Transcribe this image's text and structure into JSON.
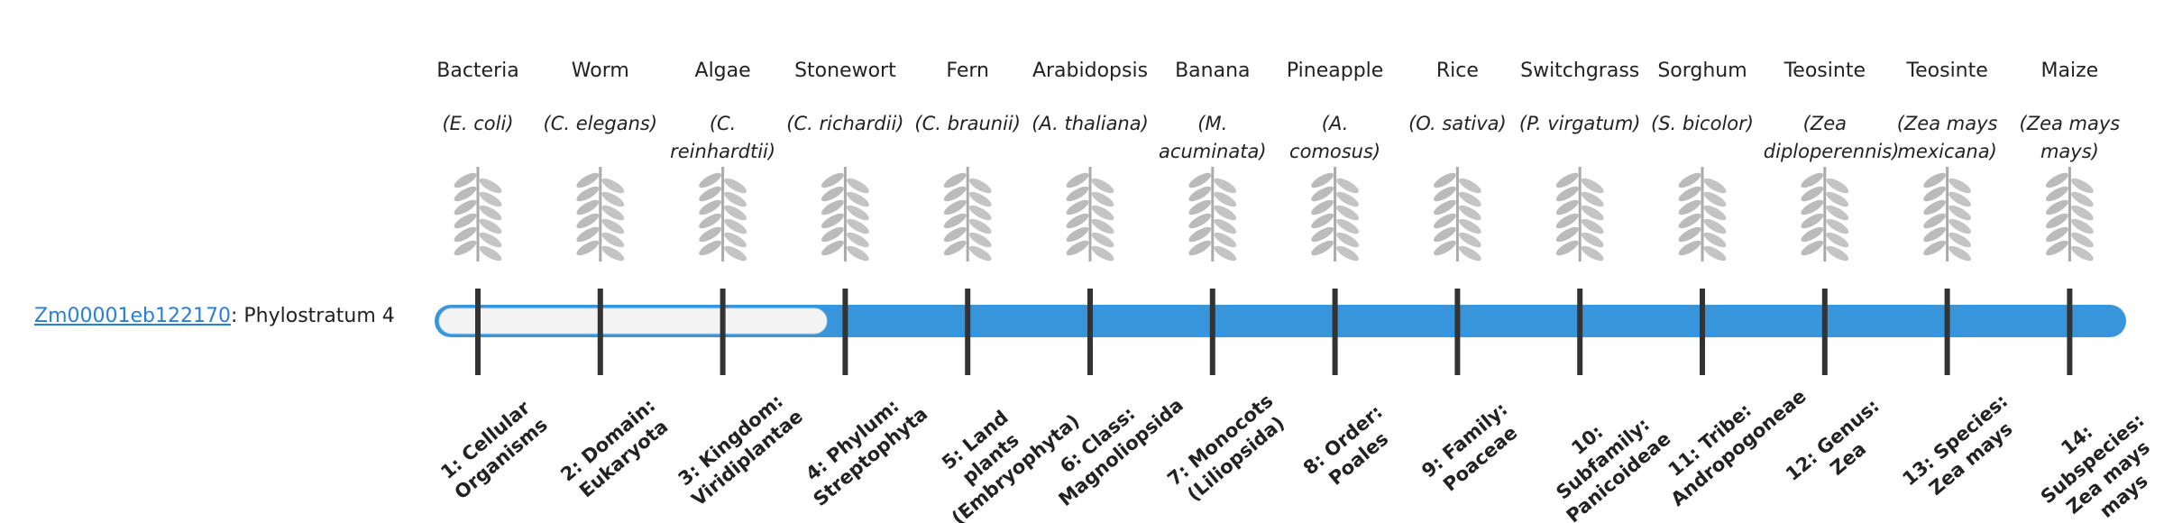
{
  "gene": {
    "id": "Zm00001eb122170",
    "suffix": ": Phylostratum 4"
  },
  "strata": [
    {
      "name": "Bacteria",
      "species": "(E. coli)",
      "label": "1: Cellular Organisms"
    },
    {
      "name": "Worm",
      "species": "(C. elegans)",
      "label": "2: Domain: Eukaryota"
    },
    {
      "name": "Algae",
      "species": "(C. reinhardtii)",
      "label": "3: Kingdom: Viridiplantae"
    },
    {
      "name": "Stonewort",
      "species": "(C. richardii)",
      "label": "4: Phylum: Streptophyta"
    },
    {
      "name": "Fern",
      "species": "(C. braunii)",
      "label": "5: Land plants (Embryophyta)"
    },
    {
      "name": "Arabidopsis",
      "species": "(A. thaliana)",
      "label": "6: Class: Magnoliopsida"
    },
    {
      "name": "Banana",
      "species": "(M. acuminata)",
      "label": "7: Monocots (Liliopsida)"
    },
    {
      "name": "Pineapple",
      "species": "(A. comosus)",
      "label": "8: Order: Poales"
    },
    {
      "name": "Rice",
      "species": "(O. sativa)",
      "label": "9: Family: Poaceae"
    },
    {
      "name": "Switchgrass",
      "species": "(P. virgatum)",
      "label": "10: Subfamily: Panicoideae"
    },
    {
      "name": "Sorghum",
      "species": "(S. bicolor)",
      "label": "11: Tribe: Andropogoneae"
    },
    {
      "name": "Teosinte",
      "species": "(Zea diploperennis)",
      "label": "12: Genus: Zea"
    },
    {
      "name": "Teosinte",
      "species": "(Zea mays mexicana)",
      "label": "13: Species: Zea mays"
    },
    {
      "name": "Maize",
      "species": "(Zea mays mays)",
      "label": "14: Subspecies: Zea mays mays"
    }
  ]
}
